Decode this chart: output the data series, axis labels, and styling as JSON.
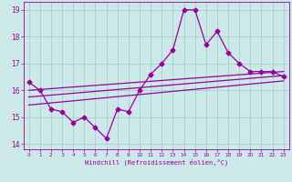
{
  "xlabel": "Windchill (Refroidissement éolien,°C)",
  "background_color": "#cce8e8",
  "grid_color": "#99cccc",
  "line_color": "#990099",
  "xlim": [
    -0.5,
    23.5
  ],
  "ylim": [
    13.8,
    19.3
  ],
  "yticks": [
    14,
    15,
    16,
    17,
    18,
    19
  ],
  "xticks": [
    0,
    1,
    2,
    3,
    4,
    5,
    6,
    7,
    8,
    9,
    10,
    11,
    12,
    13,
    14,
    15,
    16,
    17,
    18,
    19,
    20,
    21,
    22,
    23
  ],
  "main_line_x": [
    0,
    1,
    2,
    3,
    4,
    5,
    6,
    7,
    8,
    9,
    10,
    11,
    12,
    13,
    14,
    15,
    16,
    17,
    18,
    19,
    20,
    21,
    22,
    23
  ],
  "main_line_y": [
    16.3,
    16.0,
    15.3,
    15.2,
    14.8,
    15.0,
    14.6,
    14.2,
    15.3,
    15.2,
    16.0,
    16.6,
    17.0,
    17.5,
    19.0,
    19.0,
    17.7,
    18.2,
    17.4,
    17.0,
    16.7,
    16.7,
    16.7,
    16.5
  ],
  "reg_line1": [
    [
      0,
      23
    ],
    [
      16.0,
      16.7
    ]
  ],
  "reg_line2": [
    [
      0,
      23
    ],
    [
      15.75,
      16.55
    ]
  ],
  "reg_line3": [
    [
      0,
      23
    ],
    [
      15.45,
      16.35
    ]
  ],
  "marker": "D",
  "markersize": 2.5,
  "linewidth": 0.9
}
